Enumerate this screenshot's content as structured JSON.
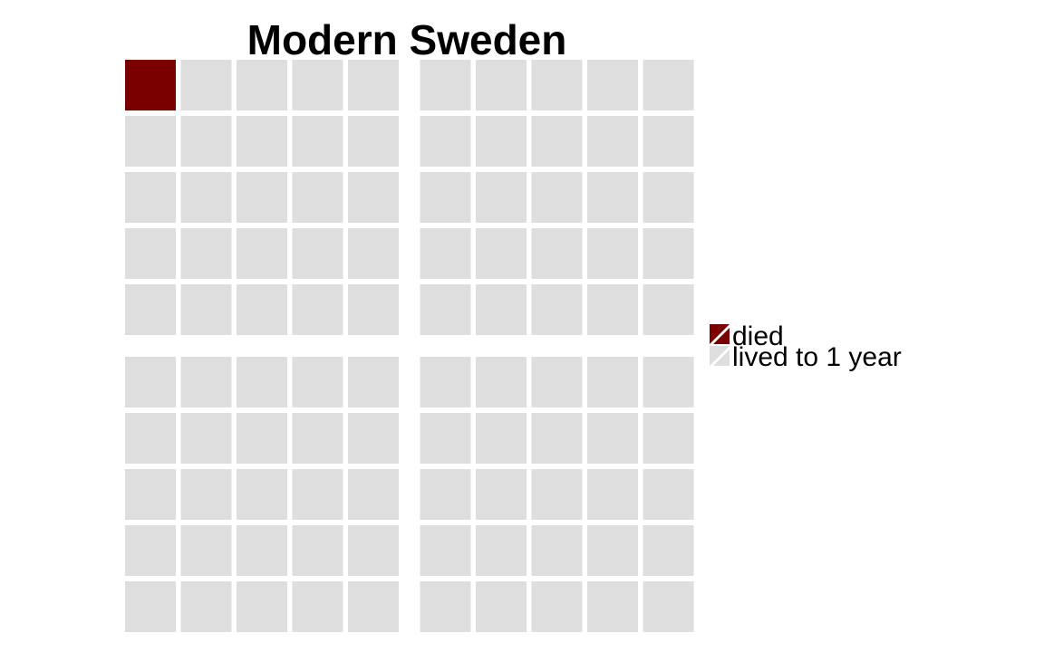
{
  "chart_data": {
    "type": "waffle",
    "title": "Modern Sweden",
    "rows": 10,
    "cols": 10,
    "categories": [
      "died",
      "lived to 1 year"
    ],
    "values": [
      1,
      99
    ],
    "colors": {
      "died": "#7a0000",
      "lived to 1 year": "#dedede"
    },
    "legend": {
      "position": "right",
      "entries": [
        {
          "label": "died",
          "color": "#7a0000"
        },
        {
          "label": "lived to 1 year",
          "color": "#dedede"
        }
      ]
    }
  }
}
